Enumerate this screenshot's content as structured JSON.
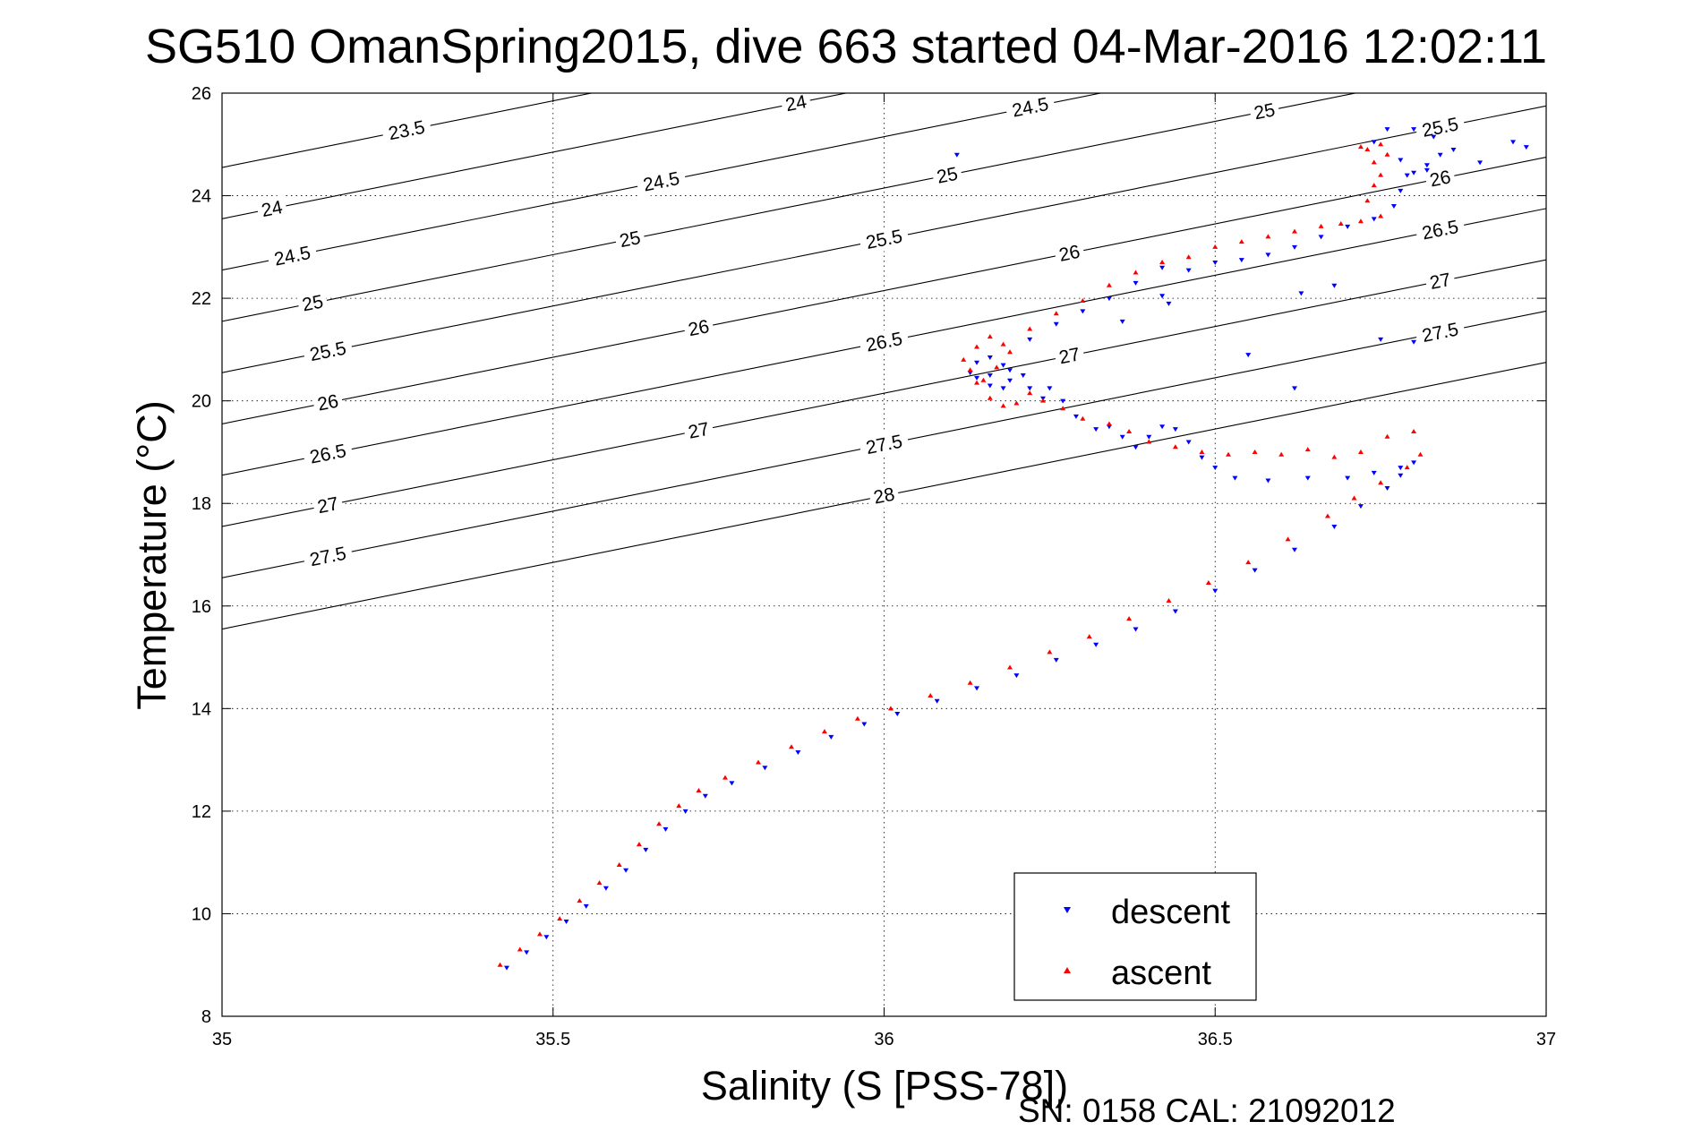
{
  "chart_data": {
    "type": "scatter",
    "title": "SG510 OmanSpring2015, dive 663 started 04-Mar-2016 12:02:11",
    "xlabel": "Salinity (S [PSS-78])",
    "ylabel": "Temperature (°C)",
    "xlim": [
      35,
      37
    ],
    "ylim": [
      8,
      26
    ],
    "xticks": [
      "35",
      "35.5",
      "36",
      "36.5",
      "37"
    ],
    "yticks": [
      "8",
      "10",
      "12",
      "14",
      "16",
      "18",
      "20",
      "22",
      "24",
      "26"
    ],
    "grid": true,
    "legend_position": "bottom-right",
    "footer": "SN: 0158  CAL: 21092012",
    "density_contours": [
      {
        "sigma": 23.5,
        "labels": [
          "23.5"
        ]
      },
      {
        "sigma": 24.0,
        "labels": [
          "24",
          "24"
        ]
      },
      {
        "sigma": 24.5,
        "labels": [
          "24.5",
          "24.5",
          "24.5"
        ]
      },
      {
        "sigma": 25.0,
        "labels": [
          "25",
          "25",
          "25",
          "25"
        ]
      },
      {
        "sigma": 25.5,
        "labels": [
          "25.5",
          "25.5",
          "25.5"
        ]
      },
      {
        "sigma": 26.0,
        "labels": [
          "26",
          "26",
          "26",
          "26"
        ]
      },
      {
        "sigma": 26.5,
        "labels": [
          "26.5",
          "26.5",
          "26.5"
        ]
      },
      {
        "sigma": 27.0,
        "labels": [
          "27",
          "27",
          "27",
          "27"
        ]
      },
      {
        "sigma": 27.5,
        "labels": [
          "27.5",
          "27.5",
          "27.5"
        ]
      },
      {
        "sigma": 28.0,
        "labels": [
          "28"
        ]
      }
    ],
    "series": [
      {
        "name": "descent",
        "color": "#0000ff",
        "marker": "triangle-down",
        "points": [
          [
            35.43,
            8.95
          ],
          [
            35.46,
            9.25
          ],
          [
            35.49,
            9.55
          ],
          [
            35.52,
            9.85
          ],
          [
            35.55,
            10.15
          ],
          [
            35.58,
            10.5
          ],
          [
            35.61,
            10.85
          ],
          [
            35.64,
            11.25
          ],
          [
            35.67,
            11.65
          ],
          [
            35.7,
            12.0
          ],
          [
            35.73,
            12.3
          ],
          [
            35.77,
            12.55
          ],
          [
            35.82,
            12.85
          ],
          [
            35.87,
            13.15
          ],
          [
            35.92,
            13.45
          ],
          [
            35.97,
            13.7
          ],
          [
            36.02,
            13.9
          ],
          [
            36.08,
            14.15
          ],
          [
            36.14,
            14.4
          ],
          [
            36.2,
            14.65
          ],
          [
            36.26,
            14.95
          ],
          [
            36.32,
            15.25
          ],
          [
            36.38,
            15.55
          ],
          [
            36.44,
            15.9
          ],
          [
            36.5,
            16.3
          ],
          [
            36.56,
            16.7
          ],
          [
            36.62,
            17.1
          ],
          [
            36.68,
            17.55
          ],
          [
            36.72,
            17.95
          ],
          [
            36.76,
            18.3
          ],
          [
            36.78,
            18.55
          ],
          [
            36.8,
            18.8
          ],
          [
            36.78,
            18.7
          ],
          [
            36.74,
            18.6
          ],
          [
            36.7,
            18.5
          ],
          [
            36.64,
            18.5
          ],
          [
            36.58,
            18.45
          ],
          [
            36.53,
            18.5
          ],
          [
            36.5,
            18.7
          ],
          [
            36.48,
            18.9
          ],
          [
            36.46,
            19.2
          ],
          [
            36.44,
            19.45
          ],
          [
            36.42,
            19.5
          ],
          [
            36.4,
            19.3
          ],
          [
            36.38,
            19.1
          ],
          [
            36.36,
            19.3
          ],
          [
            36.34,
            19.5
          ],
          [
            36.32,
            19.45
          ],
          [
            36.29,
            19.7
          ],
          [
            36.27,
            20.0
          ],
          [
            36.25,
            20.25
          ],
          [
            36.24,
            20.05
          ],
          [
            36.22,
            20.25
          ],
          [
            36.21,
            20.5
          ],
          [
            36.19,
            20.4
          ],
          [
            36.18,
            20.25
          ],
          [
            36.16,
            20.3
          ],
          [
            36.14,
            20.45
          ],
          [
            36.13,
            20.55
          ],
          [
            36.14,
            20.75
          ],
          [
            36.16,
            20.85
          ],
          [
            36.18,
            20.7
          ],
          [
            36.19,
            20.6
          ],
          [
            36.16,
            20.5
          ],
          [
            36.22,
            21.2
          ],
          [
            36.26,
            21.5
          ],
          [
            36.3,
            21.75
          ],
          [
            36.34,
            22.0
          ],
          [
            36.38,
            22.3
          ],
          [
            36.42,
            22.6
          ],
          [
            36.46,
            22.55
          ],
          [
            36.5,
            22.7
          ],
          [
            36.54,
            22.75
          ],
          [
            36.58,
            22.85
          ],
          [
            36.62,
            23.0
          ],
          [
            36.66,
            23.2
          ],
          [
            36.7,
            23.4
          ],
          [
            36.74,
            23.55
          ],
          [
            36.77,
            23.8
          ],
          [
            36.78,
            24.1
          ],
          [
            36.79,
            24.4
          ],
          [
            36.8,
            24.45
          ],
          [
            36.82,
            24.6
          ],
          [
            36.84,
            24.8
          ],
          [
            36.86,
            24.9
          ],
          [
            36.83,
            25.15
          ],
          [
            36.8,
            25.3
          ],
          [
            36.76,
            25.3
          ],
          [
            36.74,
            25.05
          ],
          [
            36.78,
            24.7
          ],
          [
            36.82,
            24.5
          ],
          [
            36.11,
            24.8
          ],
          [
            36.55,
            20.9
          ],
          [
            36.62,
            20.25
          ],
          [
            36.75,
            21.2
          ],
          [
            36.8,
            21.15
          ],
          [
            36.9,
            24.65
          ],
          [
            36.95,
            25.05
          ],
          [
            36.97,
            24.95
          ],
          [
            36.43,
            21.9
          ],
          [
            36.42,
            22.05
          ],
          [
            36.36,
            21.55
          ],
          [
            36.63,
            22.1
          ],
          [
            36.68,
            22.25
          ]
        ]
      },
      {
        "name": "ascent",
        "color": "#ff0000",
        "marker": "triangle-up",
        "points": [
          [
            35.42,
            9.0
          ],
          [
            35.45,
            9.3
          ],
          [
            35.48,
            9.6
          ],
          [
            35.51,
            9.9
          ],
          [
            35.54,
            10.25
          ],
          [
            35.57,
            10.6
          ],
          [
            35.6,
            10.95
          ],
          [
            35.63,
            11.35
          ],
          [
            35.66,
            11.75
          ],
          [
            35.69,
            12.1
          ],
          [
            35.72,
            12.4
          ],
          [
            35.76,
            12.65
          ],
          [
            35.81,
            12.95
          ],
          [
            35.86,
            13.25
          ],
          [
            35.91,
            13.55
          ],
          [
            35.96,
            13.8
          ],
          [
            36.01,
            14.0
          ],
          [
            36.07,
            14.25
          ],
          [
            36.13,
            14.5
          ],
          [
            36.19,
            14.8
          ],
          [
            36.25,
            15.1
          ],
          [
            36.31,
            15.4
          ],
          [
            36.37,
            15.75
          ],
          [
            36.43,
            16.1
          ],
          [
            36.49,
            16.45
          ],
          [
            36.55,
            16.85
          ],
          [
            36.61,
            17.3
          ],
          [
            36.67,
            17.75
          ],
          [
            36.71,
            18.1
          ],
          [
            36.75,
            18.4
          ],
          [
            36.79,
            18.7
          ],
          [
            36.81,
            18.95
          ],
          [
            36.8,
            19.4
          ],
          [
            36.76,
            19.3
          ],
          [
            36.72,
            19.0
          ],
          [
            36.68,
            18.9
          ],
          [
            36.64,
            19.05
          ],
          [
            36.6,
            18.95
          ],
          [
            36.56,
            19.0
          ],
          [
            36.52,
            18.95
          ],
          [
            36.48,
            19.0
          ],
          [
            36.44,
            19.1
          ],
          [
            36.4,
            19.2
          ],
          [
            36.37,
            19.4
          ],
          [
            36.34,
            19.55
          ],
          [
            36.3,
            19.65
          ],
          [
            36.27,
            19.85
          ],
          [
            36.24,
            20.0
          ],
          [
            36.22,
            20.15
          ],
          [
            36.2,
            19.95
          ],
          [
            36.18,
            19.9
          ],
          [
            36.16,
            20.05
          ],
          [
            36.14,
            20.35
          ],
          [
            36.13,
            20.6
          ],
          [
            36.12,
            20.8
          ],
          [
            36.14,
            21.05
          ],
          [
            36.16,
            21.25
          ],
          [
            36.18,
            21.1
          ],
          [
            36.19,
            20.95
          ],
          [
            36.17,
            20.65
          ],
          [
            36.15,
            20.4
          ],
          [
            36.22,
            21.4
          ],
          [
            36.26,
            21.7
          ],
          [
            36.3,
            21.95
          ],
          [
            36.34,
            22.25
          ],
          [
            36.38,
            22.5
          ],
          [
            36.42,
            22.7
          ],
          [
            36.46,
            22.8
          ],
          [
            36.5,
            23.0
          ],
          [
            36.54,
            23.1
          ],
          [
            36.58,
            23.2
          ],
          [
            36.62,
            23.3
          ],
          [
            36.66,
            23.4
          ],
          [
            36.69,
            23.45
          ],
          [
            36.72,
            23.5
          ],
          [
            36.75,
            23.6
          ],
          [
            36.73,
            23.9
          ],
          [
            36.74,
            24.2
          ],
          [
            36.75,
            24.4
          ],
          [
            36.74,
            24.65
          ],
          [
            36.73,
            24.9
          ],
          [
            36.75,
            25.0
          ],
          [
            36.72,
            24.95
          ],
          [
            36.76,
            24.8
          ]
        ]
      }
    ]
  }
}
